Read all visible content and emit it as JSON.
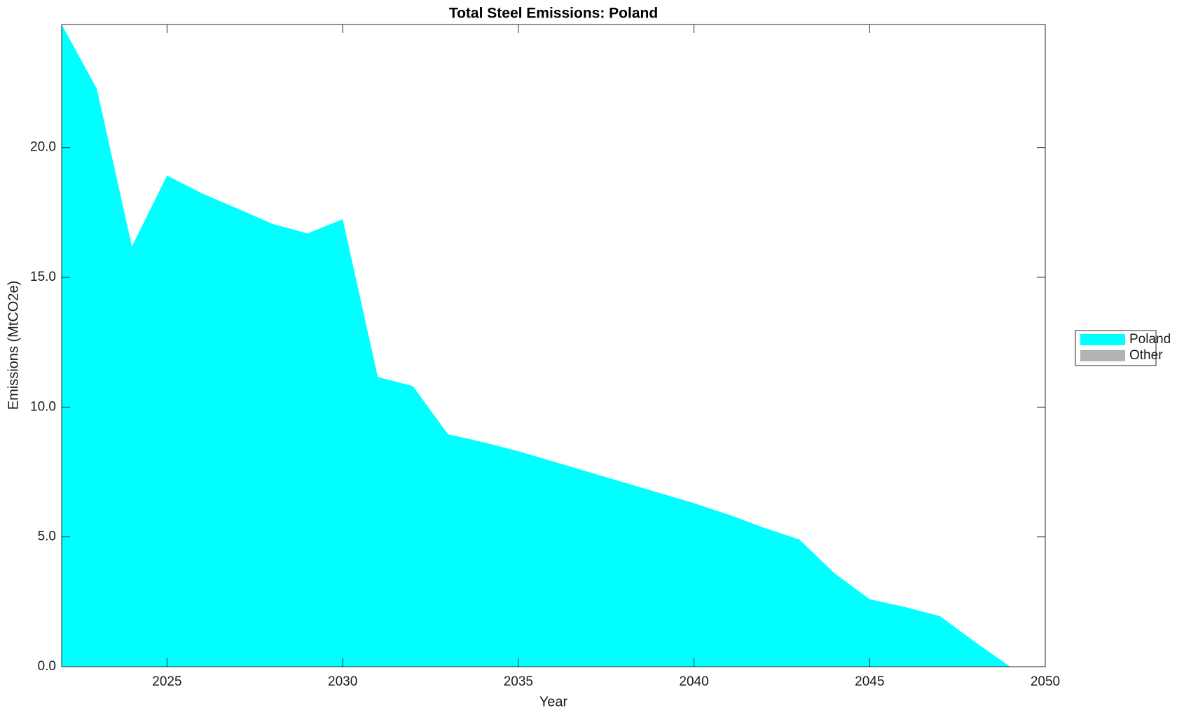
{
  "chart_data": {
    "type": "area",
    "title": "Total Steel Emissions: Poland",
    "xlabel": "Year",
    "ylabel": "Emissions (MtCO2e)",
    "x": [
      2022,
      2023,
      2024,
      2025,
      2026,
      2027,
      2028,
      2029,
      2030,
      2031,
      2032,
      2033,
      2034,
      2035,
      2036,
      2037,
      2038,
      2039,
      2040,
      2041,
      2042,
      2043,
      2044,
      2045,
      2046,
      2047,
      2048,
      2049
    ],
    "series": [
      {
        "name": "Poland",
        "color": "#00ffff",
        "values": [
          24.74,
          22.27,
          16.19,
          18.92,
          18.23,
          17.65,
          17.06,
          16.69,
          17.24,
          11.16,
          10.81,
          8.95,
          8.65,
          8.3,
          7.9,
          7.5,
          7.1,
          6.7,
          6.3,
          5.85,
          5.35,
          4.9,
          3.6,
          2.6,
          2.3,
          1.95,
          0.95,
          0
        ]
      },
      {
        "name": "Other",
        "color": "#b3b3b3",
        "values": [
          0,
          0,
          0,
          0,
          0,
          0,
          0,
          0,
          0,
          0,
          0,
          0,
          0,
          0,
          0,
          0,
          0,
          0,
          0,
          0,
          0,
          0,
          0,
          0,
          0,
          0,
          0,
          0
        ]
      }
    ],
    "stacked": true,
    "xlim": [
      2022,
      2050
    ],
    "xticks": [
      2025,
      2030,
      2035,
      2040,
      2045,
      2050
    ],
    "ylim": [
      0,
      24.74
    ],
    "yticks": [
      {
        "value": 0,
        "label": "0.0"
      },
      {
        "value": 5,
        "label": "5.0"
      },
      {
        "value": 10,
        "label": "10.0"
      },
      {
        "value": 15,
        "label": "15.0"
      },
      {
        "value": 20,
        "label": "20.0"
      }
    ],
    "grid": false,
    "legend": "outside-right"
  }
}
